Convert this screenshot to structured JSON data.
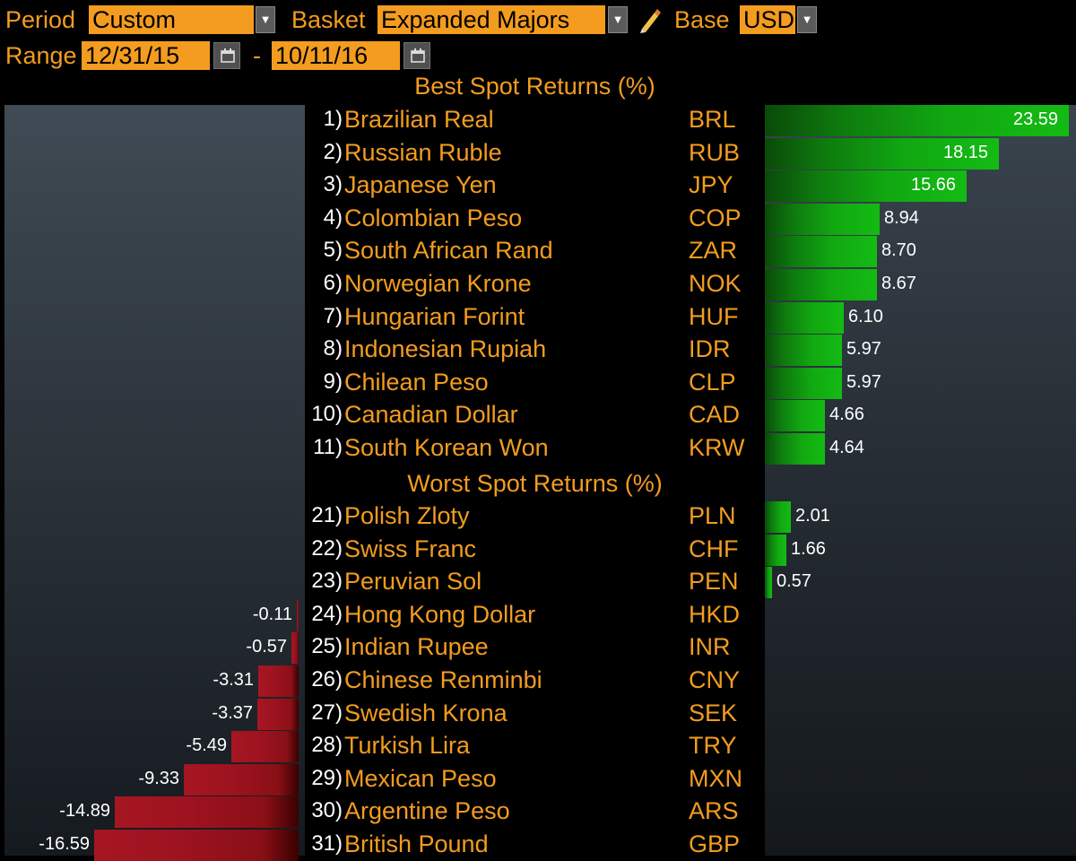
{
  "controls": {
    "period_label": "Period",
    "period_value": "Custom",
    "basket_label": "Basket",
    "basket_value": "Expanded Majors",
    "base_label": "Base",
    "base_value": "USD",
    "range_label": "Range",
    "range_start": "12/31/15",
    "range_separator": "-",
    "range_end": "10/11/16"
  },
  "icons": {
    "dropdown": "chevron-down-icon",
    "edit": "pencil-icon",
    "calendar": "calendar-icon"
  },
  "colors": {
    "accent": "#f39c1f",
    "positive_bar": "#14bb14",
    "negative_bar": "#a51622",
    "background": "#000000"
  },
  "chart_data": {
    "type": "bar",
    "orientation": "horizontal",
    "sections": [
      {
        "title": "Best Spot Returns (%)",
        "rows": [
          {
            "rank": "1)",
            "name": "Brazilian Real",
            "code": "BRL",
            "value": 23.59,
            "label": "23.59"
          },
          {
            "rank": "2)",
            "name": "Russian Ruble",
            "code": "RUB",
            "value": 18.15,
            "label": "18.15"
          },
          {
            "rank": "3)",
            "name": "Japanese Yen",
            "code": "JPY",
            "value": 15.66,
            "label": "15.66"
          },
          {
            "rank": "4)",
            "name": "Colombian Peso",
            "code": "COP",
            "value": 8.94,
            "label": "8.94"
          },
          {
            "rank": "5)",
            "name": "South African Rand",
            "code": "ZAR",
            "value": 8.7,
            "label": "8.70"
          },
          {
            "rank": "6)",
            "name": "Norwegian Krone",
            "code": "NOK",
            "value": 8.67,
            "label": "8.67"
          },
          {
            "rank": "7)",
            "name": "Hungarian Forint",
            "code": "HUF",
            "value": 6.1,
            "label": "6.10"
          },
          {
            "rank": "8)",
            "name": "Indonesian Rupiah",
            "code": "IDR",
            "value": 5.97,
            "label": "5.97"
          },
          {
            "rank": "9)",
            "name": "Chilean Peso",
            "code": "CLP",
            "value": 5.97,
            "label": "5.97"
          },
          {
            "rank": "10)",
            "name": "Canadian Dollar",
            "code": "CAD",
            "value": 4.66,
            "label": "4.66"
          },
          {
            "rank": "11)",
            "name": "South Korean Won",
            "code": "KRW",
            "value": 4.64,
            "label": "4.64"
          }
        ]
      },
      {
        "title": "Worst Spot Returns (%)",
        "rows": [
          {
            "rank": "21)",
            "name": "Polish Zloty",
            "code": "PLN",
            "value": 2.01,
            "label": "2.01"
          },
          {
            "rank": "22)",
            "name": "Swiss Franc",
            "code": "CHF",
            "value": 1.66,
            "label": "1.66"
          },
          {
            "rank": "23)",
            "name": "Peruvian Sol",
            "code": "PEN",
            "value": 0.57,
            "label": "0.57"
          },
          {
            "rank": "24)",
            "name": "Hong Kong Dollar",
            "code": "HKD",
            "value": -0.11,
            "label": "-0.11"
          },
          {
            "rank": "25)",
            "name": "Indian Rupee",
            "code": "INR",
            "value": -0.57,
            "label": "-0.57"
          },
          {
            "rank": "26)",
            "name": "Chinese Renminbi",
            "code": "CNY",
            "value": -3.31,
            "label": "-3.31"
          },
          {
            "rank": "27)",
            "name": "Swedish Krona",
            "code": "SEK",
            "value": -3.37,
            "label": "-3.37"
          },
          {
            "rank": "28)",
            "name": "Turkish Lira",
            "code": "TRY",
            "value": -5.49,
            "label": "-5.49"
          },
          {
            "rank": "29)",
            "name": "Mexican Peso",
            "code": "MXN",
            "value": -9.33,
            "label": "-9.33"
          },
          {
            "rank": "30)",
            "name": "Argentine Peso",
            "code": "ARS",
            "value": -14.89,
            "label": "-14.89"
          },
          {
            "rank": "31)",
            "name": "British Pound",
            "code": "GBP",
            "value": -16.59,
            "label": "-16.59"
          }
        ]
      }
    ]
  }
}
